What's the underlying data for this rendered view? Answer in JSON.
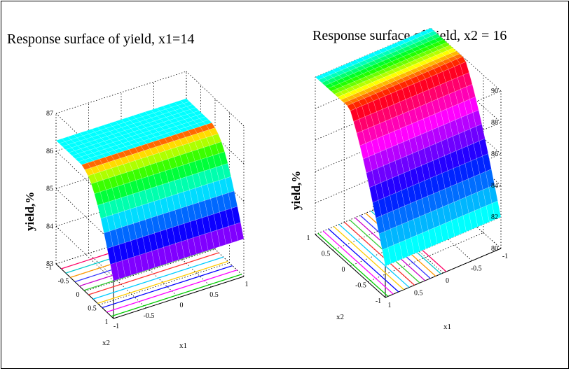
{
  "chart_data": [
    {
      "type": "surface",
      "title": "Response surface of yield,  x1=14",
      "ylabel": "yield,%",
      "axis1_label": "x1",
      "axis2_label": "x2",
      "zticks": [
        "83",
        "84",
        "85",
        "86",
        "87"
      ],
      "axis1_ticks": [
        "-1",
        "-0.5",
        "0",
        "0.5",
        "1"
      ],
      "axis2_ticks": [
        "-1",
        "-0.5",
        "0",
        "0.5",
        "1"
      ],
      "grid": true,
      "colormap": "hsv",
      "contour_colors": [
        "#00cc00",
        "#ff00ff",
        "#0000ff",
        "#ffcc00",
        "#00ccff",
        "#ff3333",
        "#33cc33",
        "#cc00cc",
        "#3333ff",
        "#ff9900",
        "#00cccc",
        "#ff0066"
      ]
    },
    {
      "type": "surface",
      "title": "Response surface of yield,  x2 = 16",
      "ylabel": "yield,%",
      "axis1_label": "x1",
      "axis2_label": "x2",
      "zticks": [
        "80",
        "82",
        "84",
        "86",
        "88",
        "90"
      ],
      "axis1_ticks": [
        "-1",
        "-0.5",
        "0",
        "0.5",
        "1"
      ],
      "axis2_ticks": [
        "-1",
        "-0.5",
        "0",
        "0.5",
        "1"
      ],
      "grid": true,
      "colormap": "hsv",
      "contour_colors": [
        "#00cc00",
        "#ff00ff",
        "#0000ff",
        "#ffcc00",
        "#00ccff",
        "#ff3333",
        "#33cc33",
        "#cc00cc",
        "#3333ff",
        "#ff9900",
        "#00cccc",
        "#ff0066"
      ]
    }
  ]
}
